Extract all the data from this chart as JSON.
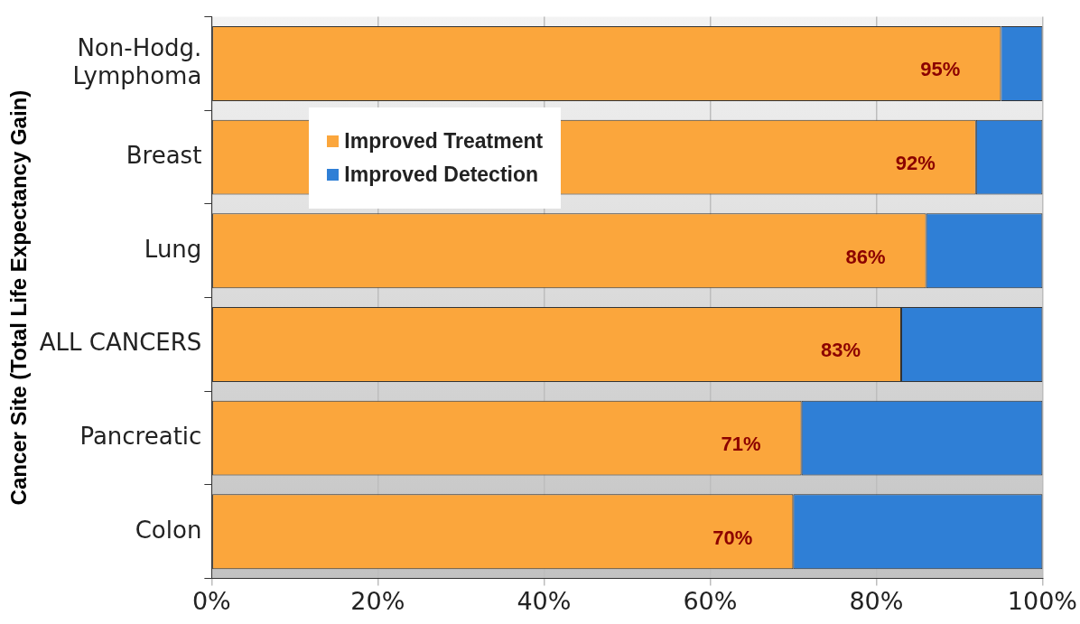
{
  "chart_data": {
    "type": "bar",
    "orientation": "horizontal",
    "stacked": true,
    "ylabel": "Cancer Site (Total Life Expectancy Gain)",
    "categories": [
      "Non-Hodg. Lymphoma",
      "Breast",
      "Lung",
      "ALL CANCERS",
      "Pancreatic",
      "Colon"
    ],
    "series": [
      {
        "name": "Improved Treatment",
        "color": "#fba63c",
        "values": [
          95,
          92,
          86,
          83,
          71,
          70
        ],
        "value_labels": [
          "95%",
          "92%",
          "86%",
          "83%",
          "71%",
          "70%"
        ]
      },
      {
        "name": "Improved Detection",
        "color": "#2f7fd6",
        "values": [
          5,
          8,
          14,
          17,
          29,
          30
        ]
      }
    ],
    "xlim": [
      0,
      100
    ],
    "xticks": [
      {
        "value": 0,
        "label": "0%"
      },
      {
        "value": 20,
        "label": "20%"
      },
      {
        "value": 40,
        "label": "40%"
      },
      {
        "value": 60,
        "label": "60%"
      },
      {
        "value": 80,
        "label": "80%"
      },
      {
        "value": 100,
        "label": "100%"
      }
    ],
    "grid": "x",
    "legend": "top"
  }
}
